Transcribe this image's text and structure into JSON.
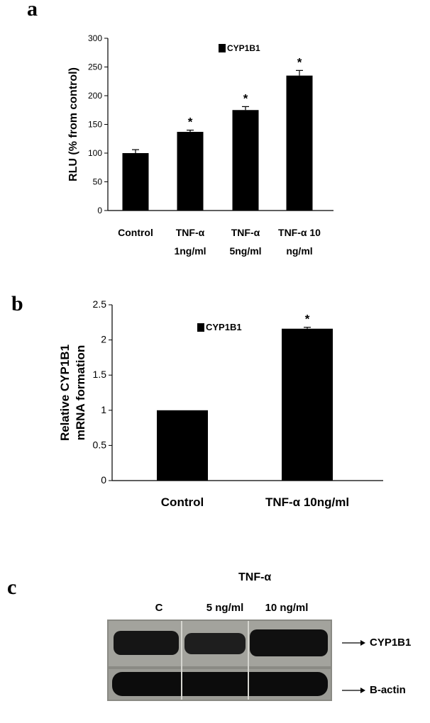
{
  "panel_labels": {
    "a": "a",
    "b": "b",
    "c": "c"
  },
  "chart_data": [
    {
      "type": "bar",
      "title": "",
      "ylabel": "RLU (% from control)",
      "xlabel": "",
      "legend": {
        "label": "CYP1B1",
        "placement": "top-center"
      },
      "ylim": [
        0,
        300
      ],
      "yticks": [
        0,
        50,
        100,
        150,
        200,
        250,
        300
      ],
      "categories": [
        [
          "Control"
        ],
        [
          "TNF-α",
          "1ng/ml"
        ],
        [
          "TNF-α",
          "5ng/ml"
        ],
        [
          "TNF-α 10",
          "ng/ml"
        ]
      ],
      "series": [
        {
          "name": "CYP1B1",
          "values": [
            100,
            137,
            175,
            235
          ],
          "errors": [
            6,
            3,
            6,
            9
          ]
        }
      ],
      "annotations": [
        "",
        "*",
        "*",
        "*"
      ]
    },
    {
      "type": "bar",
      "title": "",
      "ylabel": [
        "Relative CYP1B1",
        "mRNA formation"
      ],
      "xlabel": "",
      "legend": {
        "label": "CYP1B1",
        "placement": "top-center"
      },
      "ylim": [
        0,
        2.5
      ],
      "yticks": [
        "0",
        "0.5",
        "1",
        "1.5",
        "2",
        "2.5"
      ],
      "categories": [
        "Control",
        "TNF-α 10ng/ml"
      ],
      "series": [
        {
          "name": "CYP1B1",
          "values": [
            1.0,
            2.16
          ],
          "errors": [
            0,
            0.02
          ]
        }
      ],
      "annotations": [
        "",
        "*"
      ]
    }
  ],
  "blot": {
    "treatment_label": "TNF-α",
    "lane_labels": [
      "C",
      "5 ng/ml",
      "10 ng/ml"
    ],
    "row_labels": [
      "CYP1B1",
      "B-actin"
    ]
  }
}
